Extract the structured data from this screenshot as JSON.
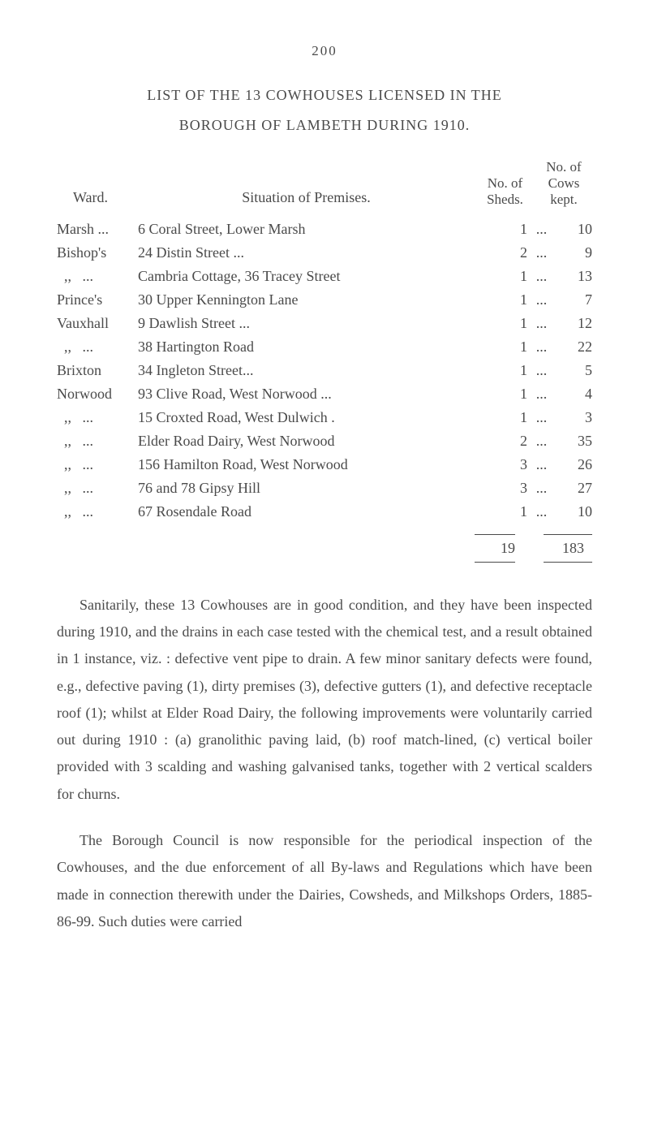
{
  "page_number": "200",
  "title_line1": "LIST OF THE 13 COWHOUSES LICENSED IN THE",
  "title_line2": "BOROUGH OF LAMBETH DURING 1910.",
  "headers": {
    "ward": "Ward.",
    "situation": "Situation of Premises.",
    "sheds": "No. of\nSheds.",
    "cows": "No. of\nCows\nkept."
  },
  "rows": [
    {
      "ward": "Marsh ...",
      "situation": "6 Coral Street, Lower Marsh",
      "dots1": "...",
      "sheds": "1",
      "dots2": "...",
      "cows": "10"
    },
    {
      "ward": "Bishop's",
      "situation": "24 Distin Street  ...",
      "dots1": "...",
      "sheds": "2",
      "dots2": "...",
      "cows": "9"
    },
    {
      "ward": "  ,,   ...",
      "situation": "Cambria Cottage, 36 Tracey Street",
      "dots1": "",
      "sheds": "1",
      "dots2": "...",
      "cows": "13"
    },
    {
      "ward": "Prince's",
      "situation": "30 Upper Kennington Lane",
      "dots1": "...",
      "sheds": "1",
      "dots2": "...",
      "cows": "7"
    },
    {
      "ward": "Vauxhall",
      "situation": "9 Dawlish Street ...",
      "dots1": "...",
      "sheds": "1",
      "dots2": "...",
      "cows": "12"
    },
    {
      "ward": "  ,,   ...",
      "situation": "38 Hartington Road",
      "dots1": "...",
      "sheds": "1",
      "dots2": "...",
      "cows": "22"
    },
    {
      "ward": "Brixton",
      "situation": "34 Ingleton Street...",
      "dots1": "...",
      "sheds": "1",
      "dots2": "...",
      "cows": "5"
    },
    {
      "ward": "Norwood",
      "situation": "93 Clive Road, West Norwood ...",
      "dots1": "",
      "sheds": "1",
      "dots2": "...",
      "cows": "4"
    },
    {
      "ward": "  ,,   ...",
      "situation": "15 Croxted Road, West Dulwich .",
      "dots1": "",
      "sheds": "1",
      "dots2": "...",
      "cows": "3"
    },
    {
      "ward": "  ,,   ...",
      "situation": "Elder Road Dairy, West Norwood",
      "dots1": "",
      "sheds": "2",
      "dots2": "...",
      "cows": "35"
    },
    {
      "ward": "  ,,   ...",
      "situation": "156 Hamilton Road, West Norwood",
      "dots1": "",
      "sheds": "3",
      "dots2": "...",
      "cows": "26"
    },
    {
      "ward": "  ,,   ...",
      "situation": "76 and 78 Gipsy Hill",
      "dots1": "...",
      "sheds": "3",
      "dots2": "...",
      "cows": "27"
    },
    {
      "ward": "  ,,   ...",
      "situation": "67 Rosendale Road",
      "dots1": "...",
      "sheds": "1",
      "dots2": "...",
      "cows": "10"
    }
  ],
  "totals": {
    "sheds": "19",
    "cows": "183"
  },
  "paragraph1": "Sanitarily, these 13 Cowhouses are in good condition, and they have been inspected during 1910, and the drains in each case tested with the chemical test, and a result obtained in 1 instance, viz. : defective vent pipe to drain. A few minor sanitary defects were found, e.g., defective paving (1), dirty premises (3), defective gutters (1), and defective receptacle roof (1); whilst at Elder Road Dairy, the following improvements were voluntarily carried out during 1910 : (a) granolithic paving laid, (b) roof match-lined, (c) vertical boiler provided with 3 scalding and washing galvanised tanks, together with 2 vertical scalders for churns.",
  "paragraph2": "The Borough Council is now responsible for the periodical inspection of the Cowhouses, and the due enforcement of all By-laws and Regulations which have been made in connection therewith under the Dairies, Cowsheds, and Milkshops Orders, 1885-86-99. Such duties were carried"
}
